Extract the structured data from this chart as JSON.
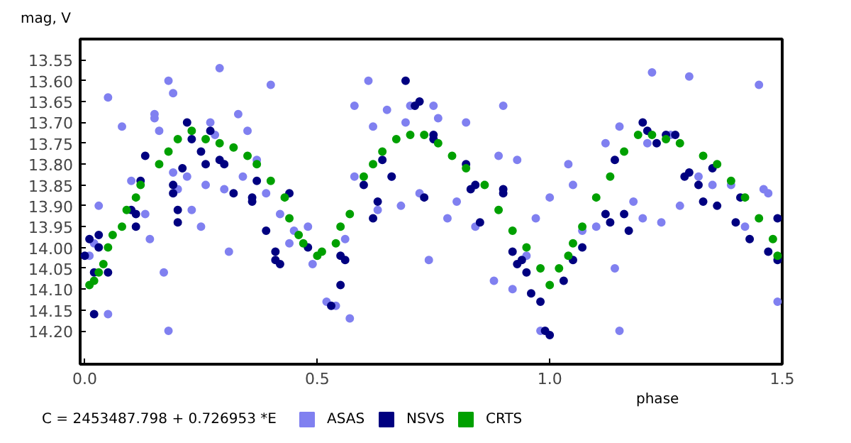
{
  "chart_data": {
    "type": "scatter",
    "xlabel": "phase",
    "ylabel": "mag, V",
    "annotations": [
      "C = 2453487.798 + 0.726953 *E"
    ],
    "xlim": [
      -0.01,
      1.5
    ],
    "ylim": [
      14.28,
      13.5
    ],
    "xticks": [
      {
        "value": 0,
        "label": "0.0"
      },
      {
        "value": 0.5,
        "label": "0.5"
      },
      {
        "value": 1.0,
        "label": "1.0"
      },
      {
        "value": 1.5,
        "label": "1.5"
      }
    ],
    "yticks": [
      {
        "value": 13.55,
        "label": "13.55"
      },
      {
        "value": 13.6,
        "label": "13.60"
      },
      {
        "value": 13.65,
        "label": "13.65"
      },
      {
        "value": 13.7,
        "label": "13.70"
      },
      {
        "value": 13.75,
        "label": "13.75"
      },
      {
        "value": 13.8,
        "label": "13.80"
      },
      {
        "value": 13.85,
        "label": "13.85"
      },
      {
        "value": 13.9,
        "label": "13.90"
      },
      {
        "value": 13.95,
        "label": "13.95"
      },
      {
        "value": 14.0,
        "label": "14.00"
      },
      {
        "value": 14.05,
        "label": "14.05"
      },
      {
        "value": 14.1,
        "label": "14.10"
      },
      {
        "value": 14.15,
        "label": "14.15"
      },
      {
        "value": 14.2,
        "label": "14.20"
      }
    ],
    "grid": false,
    "legend": "bottom",
    "marker": "circle",
    "series": [
      {
        "name": "ASAS",
        "color": "#8080f0",
        "x": [
          0.01,
          0.02,
          0.03,
          0.05,
          0.05,
          0.08,
          0.1,
          0.13,
          0.14,
          0.15,
          0.15,
          0.16,
          0.17,
          0.18,
          0.18,
          0.19,
          0.19,
          0.2,
          0.22,
          0.23,
          0.25,
          0.26,
          0.27,
          0.28,
          0.29,
          0.3,
          0.31,
          0.33,
          0.34,
          0.35,
          0.37,
          0.39,
          0.4,
          0.42,
          0.44,
          0.45,
          0.48,
          0.49,
          0.52,
          0.54,
          0.56,
          0.57,
          0.58,
          0.58,
          0.61,
          0.62,
          0.63,
          0.65,
          0.66,
          0.68,
          0.69,
          0.7,
          0.72,
          0.74,
          0.75,
          0.76,
          0.78,
          0.8,
          0.82,
          0.84,
          0.88,
          0.89,
          0.9,
          0.92,
          0.93,
          0.95,
          0.97,
          0.98,
          1.0,
          1.04,
          1.05,
          1.07,
          1.1,
          1.12,
          1.14,
          1.15,
          1.15,
          1.18,
          1.2,
          1.21,
          1.22,
          1.24,
          1.26,
          1.28,
          1.3,
          1.32,
          1.35,
          1.39,
          1.42,
          1.45,
          1.46,
          1.47,
          1.49
        ],
        "values": [
          14.02,
          13.99,
          13.9,
          14.16,
          13.64,
          13.71,
          13.84,
          13.92,
          13.98,
          13.68,
          13.69,
          13.72,
          14.06,
          13.6,
          14.2,
          13.82,
          13.63,
          13.86,
          13.83,
          13.91,
          13.95,
          13.85,
          13.7,
          13.73,
          13.57,
          13.86,
          14.01,
          13.68,
          13.83,
          13.72,
          13.79,
          13.87,
          13.61,
          13.92,
          13.99,
          13.96,
          13.95,
          14.04,
          14.13,
          14.14,
          13.98,
          14.17,
          13.66,
          13.83,
          13.6,
          13.71,
          13.91,
          13.67,
          13.83,
          13.9,
          13.7,
          13.66,
          13.87,
          14.03,
          13.66,
          13.69,
          13.93,
          13.89,
          13.7,
          13.95,
          14.08,
          13.78,
          13.66,
          14.1,
          13.79,
          14.02,
          13.93,
          14.2,
          13.88,
          13.8,
          13.85,
          13.96,
          13.95,
          13.75,
          14.05,
          13.71,
          14.2,
          13.89,
          13.93,
          13.75,
          13.58,
          13.94,
          13.73,
          13.9,
          13.59,
          13.83,
          13.85,
          13.85,
          13.95,
          13.61,
          13.86,
          13.87,
          14.13
        ]
      },
      {
        "name": "NSVS",
        "color": "#000080",
        "x": [
          0.0,
          0.01,
          0.02,
          0.02,
          0.03,
          0.03,
          0.05,
          0.1,
          0.11,
          0.11,
          0.12,
          0.13,
          0.19,
          0.19,
          0.2,
          0.2,
          0.21,
          0.22,
          0.23,
          0.25,
          0.26,
          0.27,
          0.29,
          0.3,
          0.32,
          0.36,
          0.36,
          0.37,
          0.39,
          0.41,
          0.41,
          0.42,
          0.44,
          0.48,
          0.53,
          0.55,
          0.55,
          0.56,
          0.6,
          0.62,
          0.63,
          0.64,
          0.66,
          0.69,
          0.71,
          0.72,
          0.73,
          0.75,
          0.75,
          0.82,
          0.83,
          0.84,
          0.85,
          0.9,
          0.9,
          0.92,
          0.93,
          0.94,
          0.95,
          0.96,
          0.98,
          0.99,
          1.0,
          1.03,
          1.05,
          1.07,
          1.12,
          1.13,
          1.14,
          1.16,
          1.17,
          1.2,
          1.21,
          1.23,
          1.25,
          1.27,
          1.29,
          1.3,
          1.32,
          1.33,
          1.35,
          1.36,
          1.4,
          1.41,
          1.43,
          1.47,
          1.49,
          1.49
        ],
        "values": [
          14.02,
          13.98,
          14.06,
          14.16,
          13.97,
          14.0,
          14.06,
          13.91,
          13.95,
          13.92,
          13.84,
          13.78,
          13.85,
          13.87,
          13.91,
          13.94,
          13.81,
          13.7,
          13.74,
          13.77,
          13.8,
          13.72,
          13.79,
          13.8,
          13.87,
          13.88,
          13.89,
          13.84,
          13.96,
          14.01,
          14.03,
          14.04,
          13.87,
          14.0,
          14.14,
          14.02,
          14.09,
          14.03,
          13.85,
          13.93,
          13.89,
          13.79,
          13.83,
          13.6,
          13.66,
          13.65,
          13.88,
          13.73,
          13.74,
          13.8,
          13.86,
          13.85,
          13.94,
          13.86,
          13.87,
          14.01,
          14.04,
          14.03,
          14.06,
          14.11,
          14.13,
          14.2,
          14.21,
          14.08,
          14.03,
          14.0,
          13.92,
          13.94,
          13.79,
          13.92,
          13.96,
          13.7,
          13.72,
          13.75,
          13.73,
          13.73,
          13.83,
          13.82,
          13.85,
          13.89,
          13.81,
          13.9,
          13.94,
          13.88,
          13.98,
          14.01,
          14.03,
          13.93
        ]
      },
      {
        "name": "CRTS",
        "color": "#00a000",
        "x": [
          0.01,
          0.02,
          0.03,
          0.04,
          0.05,
          0.06,
          0.08,
          0.09,
          0.11,
          0.12,
          0.16,
          0.18,
          0.2,
          0.23,
          0.26,
          0.29,
          0.32,
          0.35,
          0.37,
          0.4,
          0.43,
          0.44,
          0.46,
          0.47,
          0.5,
          0.51,
          0.54,
          0.55,
          0.57,
          0.6,
          0.62,
          0.64,
          0.67,
          0.7,
          0.73,
          0.76,
          0.79,
          0.82,
          0.86,
          0.89,
          0.92,
          0.95,
          0.98,
          1.0,
          1.02,
          1.04,
          1.05,
          1.07,
          1.1,
          1.13,
          1.16,
          1.19,
          1.22,
          1.25,
          1.28,
          1.33,
          1.36,
          1.39,
          1.42,
          1.45,
          1.48,
          1.49
        ],
        "values": [
          14.09,
          14.08,
          14.06,
          14.04,
          14.0,
          13.97,
          13.95,
          13.91,
          13.88,
          13.85,
          13.8,
          13.77,
          13.74,
          13.72,
          13.74,
          13.75,
          13.76,
          13.78,
          13.8,
          13.84,
          13.88,
          13.93,
          13.97,
          13.99,
          14.02,
          14.01,
          13.99,
          13.95,
          13.92,
          13.83,
          13.8,
          13.77,
          13.74,
          13.73,
          13.73,
          13.75,
          13.78,
          13.81,
          13.85,
          13.91,
          13.96,
          14.0,
          14.05,
          14.09,
          14.05,
          14.02,
          13.99,
          13.95,
          13.88,
          13.83,
          13.77,
          13.73,
          13.73,
          13.74,
          13.75,
          13.78,
          13.8,
          13.84,
          13.88,
          13.93,
          13.98,
          14.02
        ]
      }
    ]
  }
}
